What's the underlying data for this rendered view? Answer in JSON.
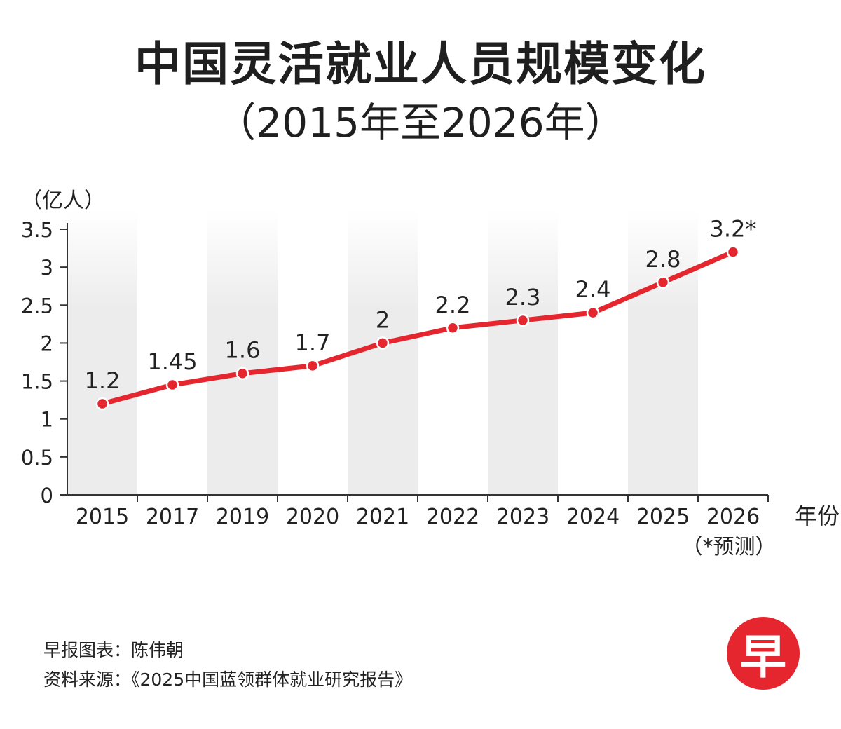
{
  "header": {
    "title": "中国灵活就业人员规模变化",
    "subtitle": "（2015年至2026年）"
  },
  "footer": {
    "credit": "早报图表：陈伟朝",
    "source": "资料来源：《2025中国蓝领群体就业研究报告》",
    "logo_char": "早"
  },
  "colors": {
    "line": "#e5262f",
    "band": "#ececec",
    "axis": "#333333"
  },
  "chart_data": {
    "type": "line",
    "title": "中国灵活就业人员规模变化",
    "subtitle": "（2015年至2026年）",
    "ylabel": "（亿人）",
    "xlabel": "年份",
    "categories": [
      "2015",
      "2017",
      "2019",
      "2020",
      "2021",
      "2022",
      "2023",
      "2024",
      "2025",
      "2026"
    ],
    "values": [
      1.2,
      1.45,
      1.6,
      1.7,
      2,
      2.2,
      2.3,
      2.4,
      2.8,
      3.2
    ],
    "data_labels": [
      "1.2",
      "1.45",
      "1.6",
      "1.7",
      "2",
      "2.2",
      "2.3",
      "2.4",
      "2.8",
      "3.2*"
    ],
    "yticks": [
      "0",
      "0.5",
      "1",
      "1.5",
      "2",
      "2.5",
      "3",
      "3.5"
    ],
    "ylim": [
      0,
      3.5
    ],
    "note": "（*预测）",
    "grid": false,
    "legend": "none"
  }
}
